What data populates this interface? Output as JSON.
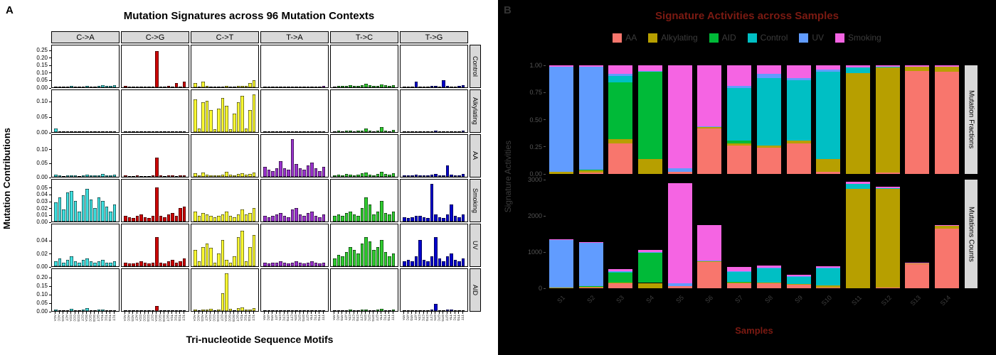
{
  "panel_a": {
    "panel_letter": "A",
    "title": "Mutation Signatures across 96 Mutation Contexts",
    "y_axis_label": "Mutation Contributions",
    "x_axis_label": "Tri-nucleotide Sequence Motifs"
  },
  "panel_b": {
    "panel_letter": "B",
    "title": "Signature Activities across Samples",
    "y_axis_label": "Signature Activities",
    "x_axis_label": "Samples",
    "facet_rows": [
      "Mutation Fractions",
      "Mutations Counts"
    ],
    "text_colors": {
      "panel_letter": "#333333",
      "title": "#7b1a12",
      "legend": "#3c3c3c",
      "ticks": "#555555",
      "xlabels": "#3f3f3f",
      "axis_title": "#7b1a12",
      "ylab": "#3c3c3c",
      "strip_bg": "#d9d9d9",
      "strip_text": "#000000"
    }
  },
  "chart_data": [
    {
      "id": "mutation-signatures-96-contexts",
      "type": "bar",
      "layout": "facet-grid-6x6",
      "facet_columns": [
        {
          "key": "CA",
          "label": "C->A",
          "color": "#3FE0E0"
        },
        {
          "key": "CG",
          "label": "C->G",
          "color": "#CC0000"
        },
        {
          "key": "CT",
          "label": "C->T",
          "color": "#FFFF33"
        },
        {
          "key": "TA",
          "label": "T->A",
          "color": "#9932CC"
        },
        {
          "key": "TC",
          "label": "T->C",
          "color": "#2ECC2E"
        },
        {
          "key": "TG",
          "label": "T->G",
          "color": "#0000CD"
        }
      ],
      "x_motifs_c": [
        "ACA",
        "ACC",
        "ACG",
        "ACT",
        "CCA",
        "CCC",
        "CCG",
        "CCT",
        "GCA",
        "GCC",
        "GCG",
        "GCT",
        "TCA",
        "TCC",
        "TCG",
        "TCT"
      ],
      "x_motifs_t": [
        "ATA",
        "ATC",
        "ATG",
        "ATT",
        "CTA",
        "CTC",
        "CTG",
        "CTT",
        "GTA",
        "GTC",
        "GTG",
        "GTT",
        "TTA",
        "TTC",
        "TTG",
        "TTT"
      ],
      "facet_rows": [
        {
          "label": "Control",
          "ymax": 0.26,
          "ticks": [
            0.0,
            0.05,
            0.1,
            0.15,
            0.2,
            0.25
          ],
          "values": {
            "CA": [
              0.004,
              0.006,
              0.003,
              0.005,
              0.008,
              0.004,
              0.003,
              0.006,
              0.01,
              0.006,
              0.004,
              0.008,
              0.012,
              0.01,
              0.008,
              0.014
            ],
            "CG": [
              0.008,
              0.004,
              0.003,
              0.006,
              0.005,
              0.004,
              0.003,
              0.005,
              0.24,
              0.006,
              0.004,
              0.008,
              0.006,
              0.03,
              0.004,
              0.04
            ],
            "CT": [
              0.03,
              0.006,
              0.04,
              0.008,
              0.006,
              0.005,
              0.004,
              0.006,
              0.008,
              0.006,
              0.005,
              0.008,
              0.01,
              0.008,
              0.03,
              0.045
            ],
            "TA": [
              0.004,
              0.003,
              0.004,
              0.005,
              0.004,
              0.003,
              0.004,
              0.005,
              0.006,
              0.004,
              0.003,
              0.005,
              0.006,
              0.005,
              0.004,
              0.008
            ],
            "TC": [
              0.006,
              0.008,
              0.01,
              0.008,
              0.012,
              0.01,
              0.008,
              0.015,
              0.025,
              0.012,
              0.008,
              0.01,
              0.02,
              0.012,
              0.01,
              0.015
            ],
            "TG": [
              0.004,
              0.005,
              0.004,
              0.04,
              0.006,
              0.005,
              0.004,
              0.008,
              0.01,
              0.006,
              0.045,
              0.008,
              0.006,
              0.005,
              0.008,
              0.012
            ]
          }
        },
        {
          "label": "Alkylating",
          "ymax": 0.125,
          "ticks": [
            0.0,
            0.05,
            0.1
          ],
          "values": {
            "CA": [
              0.012,
              0.002,
              0.002,
              0.003,
              0.002,
              0.002,
              0.002,
              0.002,
              0.003,
              0.002,
              0.002,
              0.002,
              0.003,
              0.002,
              0.002,
              0.003
            ],
            "CG": [
              0.002,
              0.002,
              0.001,
              0.002,
              0.002,
              0.001,
              0.002,
              0.002,
              0.003,
              0.002,
              0.001,
              0.002,
              0.002,
              0.002,
              0.001,
              0.002
            ],
            "CT": [
              0.105,
              0.012,
              0.095,
              0.1,
              0.07,
              0.008,
              0.075,
              0.11,
              0.085,
              0.01,
              0.06,
              0.095,
              0.115,
              0.012,
              0.07,
              0.12
            ],
            "TA": [
              0.002,
              0.002,
              0.002,
              0.003,
              0.002,
              0.002,
              0.002,
              0.002,
              0.003,
              0.002,
              0.002,
              0.002,
              0.003,
              0.002,
              0.002,
              0.003
            ],
            "TC": [
              0.003,
              0.004,
              0.003,
              0.005,
              0.004,
              0.003,
              0.004,
              0.005,
              0.012,
              0.004,
              0.003,
              0.005,
              0.015,
              0.004,
              0.003,
              0.006
            ],
            "TG": [
              0.002,
              0.002,
              0.002,
              0.003,
              0.002,
              0.002,
              0.002,
              0.003,
              0.004,
              0.002,
              0.002,
              0.003,
              0.003,
              0.002,
              0.002,
              0.004
            ]
          }
        },
        {
          "label": "AA",
          "ymax": 0.14,
          "ticks": [
            0.0,
            0.05,
            0.1
          ],
          "values": {
            "CA": [
              0.008,
              0.004,
              0.003,
              0.006,
              0.005,
              0.004,
              0.003,
              0.005,
              0.008,
              0.005,
              0.004,
              0.006,
              0.01,
              0.006,
              0.005,
              0.008
            ],
            "CG": [
              0.004,
              0.003,
              0.002,
              0.004,
              0.003,
              0.002,
              0.003,
              0.004,
              0.07,
              0.004,
              0.003,
              0.005,
              0.004,
              0.003,
              0.004,
              0.006
            ],
            "CT": [
              0.012,
              0.006,
              0.015,
              0.008,
              0.006,
              0.005,
              0.006,
              0.008,
              0.018,
              0.008,
              0.006,
              0.01,
              0.012,
              0.008,
              0.01,
              0.015
            ],
            "TA": [
              0.035,
              0.025,
              0.02,
              0.03,
              0.055,
              0.03,
              0.025,
              0.135,
              0.045,
              0.03,
              0.025,
              0.04,
              0.05,
              0.03,
              0.02,
              0.035
            ],
            "TC": [
              0.006,
              0.008,
              0.006,
              0.01,
              0.008,
              0.006,
              0.008,
              0.012,
              0.015,
              0.008,
              0.006,
              0.01,
              0.018,
              0.01,
              0.008,
              0.012
            ],
            "TG": [
              0.004,
              0.005,
              0.004,
              0.008,
              0.006,
              0.004,
              0.005,
              0.008,
              0.01,
              0.006,
              0.005,
              0.04,
              0.008,
              0.005,
              0.006,
              0.01
            ]
          }
        },
        {
          "label": "Smoking",
          "ymax": 0.057,
          "ticks": [
            0.0,
            0.01,
            0.02,
            0.03,
            0.04,
            0.05
          ],
          "values": {
            "CA": [
              0.028,
              0.035,
              0.018,
              0.042,
              0.045,
              0.03,
              0.015,
              0.038,
              0.048,
              0.032,
              0.02,
              0.035,
              0.03,
              0.022,
              0.015,
              0.025
            ],
            "CG": [
              0.008,
              0.006,
              0.005,
              0.008,
              0.01,
              0.006,
              0.005,
              0.008,
              0.05,
              0.008,
              0.006,
              0.01,
              0.012,
              0.008,
              0.02,
              0.022
            ],
            "CT": [
              0.015,
              0.008,
              0.012,
              0.01,
              0.008,
              0.006,
              0.008,
              0.01,
              0.015,
              0.008,
              0.006,
              0.01,
              0.018,
              0.01,
              0.012,
              0.02
            ],
            "TA": [
              0.008,
              0.006,
              0.008,
              0.01,
              0.012,
              0.008,
              0.006,
              0.018,
              0.02,
              0.01,
              0.008,
              0.012,
              0.015,
              0.008,
              0.006,
              0.01
            ],
            "TC": [
              0.008,
              0.01,
              0.008,
              0.012,
              0.015,
              0.01,
              0.008,
              0.02,
              0.035,
              0.025,
              0.01,
              0.015,
              0.03,
              0.012,
              0.01,
              0.015
            ],
            "TG": [
              0.006,
              0.005,
              0.006,
              0.008,
              0.008,
              0.006,
              0.005,
              0.055,
              0.01,
              0.006,
              0.005,
              0.01,
              0.025,
              0.008,
              0.006,
              0.01
            ]
          }
        },
        {
          "label": "UV",
          "ymax": 0.06,
          "ticks": [
            0.0,
            0.02,
            0.04
          ],
          "values": {
            "CA": [
              0.008,
              0.012,
              0.006,
              0.01,
              0.015,
              0.008,
              0.005,
              0.01,
              0.012,
              0.008,
              0.005,
              0.008,
              0.01,
              0.006,
              0.005,
              0.008
            ],
            "CG": [
              0.006,
              0.004,
              0.004,
              0.006,
              0.008,
              0.005,
              0.004,
              0.006,
              0.045,
              0.006,
              0.004,
              0.008,
              0.01,
              0.006,
              0.008,
              0.012
            ],
            "CT": [
              0.025,
              0.008,
              0.03,
              0.035,
              0.028,
              0.006,
              0.02,
              0.04,
              0.01,
              0.006,
              0.015,
              0.045,
              0.055,
              0.008,
              0.03,
              0.048
            ],
            "TA": [
              0.005,
              0.004,
              0.005,
              0.006,
              0.008,
              0.005,
              0.004,
              0.006,
              0.008,
              0.005,
              0.004,
              0.006,
              0.008,
              0.005,
              0.004,
              0.006
            ],
            "TC": [
              0.012,
              0.018,
              0.015,
              0.022,
              0.03,
              0.025,
              0.02,
              0.035,
              0.045,
              0.038,
              0.025,
              0.03,
              0.04,
              0.022,
              0.015,
              0.02
            ],
            "TG": [
              0.008,
              0.01,
              0.008,
              0.015,
              0.04,
              0.01,
              0.008,
              0.015,
              0.045,
              0.012,
              0.008,
              0.015,
              0.02,
              0.01,
              0.008,
              0.012
            ]
          }
        },
        {
          "label": "AID",
          "ymax": 0.23,
          "ticks": [
            0.0,
            0.05,
            0.1,
            0.15,
            0.2
          ],
          "values": {
            "CA": [
              0.008,
              0.004,
              0.003,
              0.005,
              0.012,
              0.006,
              0.004,
              0.008,
              0.015,
              0.006,
              0.004,
              0.008,
              0.01,
              0.005,
              0.004,
              0.006
            ],
            "CG": [
              0.004,
              0.003,
              0.002,
              0.004,
              0.005,
              0.003,
              0.002,
              0.004,
              0.03,
              0.004,
              0.003,
              0.005,
              0.006,
              0.004,
              0.003,
              0.005
            ],
            "CT": [
              0.01,
              0.005,
              0.008,
              0.01,
              0.012,
              0.006,
              0.008,
              0.105,
              0.22,
              0.012,
              0.006,
              0.015,
              0.02,
              0.008,
              0.01,
              0.015
            ],
            "TA": [
              0.003,
              0.002,
              0.003,
              0.004,
              0.003,
              0.002,
              0.003,
              0.004,
              0.005,
              0.003,
              0.002,
              0.004,
              0.005,
              0.003,
              0.002,
              0.004
            ],
            "TC": [
              0.004,
              0.005,
              0.004,
              0.006,
              0.008,
              0.005,
              0.004,
              0.008,
              0.01,
              0.006,
              0.004,
              0.008,
              0.012,
              0.006,
              0.005,
              0.008
            ],
            "TG": [
              0.003,
              0.004,
              0.003,
              0.005,
              0.006,
              0.004,
              0.003,
              0.008,
              0.04,
              0.005,
              0.004,
              0.008,
              0.01,
              0.005,
              0.004,
              0.006
            ]
          }
        }
      ]
    },
    {
      "id": "signature-activities-across-samples",
      "type": "bar",
      "layout": "stacked-two-facets",
      "signatures": [
        {
          "name": "AA",
          "color": "#F8766D"
        },
        {
          "name": "Alkylating",
          "color": "#B79F00"
        },
        {
          "name": "AID",
          "color": "#00BA38"
        },
        {
          "name": "Control",
          "color": "#00BFC4"
        },
        {
          "name": "UV",
          "color": "#619CFF"
        },
        {
          "name": "Smoking",
          "color": "#F564E3"
        }
      ],
      "samples": [
        "S1",
        "S2",
        "S3",
        "S4",
        "S5",
        "S6",
        "S7",
        "S8",
        "S9",
        "S10",
        "S11",
        "S12",
        "S13",
        "S14"
      ],
      "fractions": [
        [
          0.0,
          0.02,
          0.0,
          0.0,
          0.97,
          0.01
        ],
        [
          0.01,
          0.02,
          0.01,
          0.0,
          0.95,
          0.01
        ],
        [
          0.28,
          0.04,
          0.52,
          0.06,
          0.02,
          0.08
        ],
        [
          0.0,
          0.14,
          0.8,
          0.0,
          0.01,
          0.05
        ],
        [
          0.02,
          0.0,
          0.0,
          0.0,
          0.03,
          0.95
        ],
        [
          0.42,
          0.01,
          0.0,
          0.0,
          0.01,
          0.56
        ],
        [
          0.26,
          0.02,
          0.03,
          0.48,
          0.02,
          0.19
        ],
        [
          0.24,
          0.02,
          0.0,
          0.62,
          0.04,
          0.08
        ],
        [
          0.28,
          0.03,
          0.0,
          0.55,
          0.02,
          0.12
        ],
        [
          0.02,
          0.12,
          0.0,
          0.8,
          0.02,
          0.04
        ],
        [
          0.0,
          0.93,
          0.0,
          0.05,
          0.0,
          0.02
        ],
        [
          0.01,
          0.97,
          0.0,
          0.01,
          0.0,
          0.01
        ],
        [
          0.95,
          0.04,
          0.0,
          0.0,
          0.0,
          0.01
        ],
        [
          0.94,
          0.05,
          0.0,
          0.0,
          0.0,
          0.01
        ]
      ],
      "counts_total": [
        1350,
        1280,
        520,
        1050,
        2900,
        1750,
        580,
        620,
        380,
        600,
        2950,
        2800,
        700,
        1750
      ],
      "counts_ymax": 3000,
      "fraction_ticks": [
        "1.00",
        "0.75",
        "0.50",
        "0.25",
        "0.00"
      ],
      "count_ticks": [
        "3000",
        "2000",
        "1000",
        "0"
      ]
    }
  ]
}
